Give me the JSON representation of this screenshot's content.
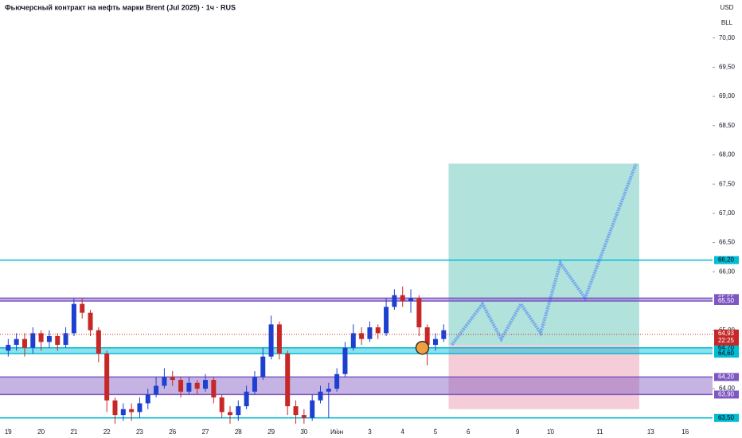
{
  "chart_data": {
    "type": "candlestick",
    "title": "Фьючерсный контракт на нефть марки Brent (Jul 2025) · 1ч · RUS",
    "currency": "USD",
    "unit": "BLL",
    "xlim": [
      -0.25,
      21.43
    ],
    "ylim": [
      63.32,
      70.65
    ],
    "xticks": [
      {
        "value": 0,
        "label": "19"
      },
      {
        "value": 1,
        "label": "20"
      },
      {
        "value": 2,
        "label": "21"
      },
      {
        "value": 3,
        "label": "22"
      },
      {
        "value": 4,
        "label": "23"
      },
      {
        "value": 5,
        "label": "26"
      },
      {
        "value": 6,
        "label": "27"
      },
      {
        "value": 7,
        "label": "28"
      },
      {
        "value": 8,
        "label": "29"
      },
      {
        "value": 9,
        "label": "30"
      },
      {
        "value": 10,
        "label": "Июн"
      },
      {
        "value": 11,
        "label": "3"
      },
      {
        "value": 12,
        "label": "4"
      },
      {
        "value": 13,
        "label": "5"
      },
      {
        "value": 14,
        "label": "6"
      },
      {
        "value": 15.5,
        "label": "9"
      },
      {
        "value": 16.5,
        "label": "10"
      },
      {
        "value": 18,
        "label": "11"
      },
      {
        "value": 19.55,
        "label": "13"
      },
      {
        "value": 20.6,
        "label": "16"
      }
    ],
    "yticks": [
      {
        "value": 70,
        "label": "70,00"
      },
      {
        "value": 69.5,
        "label": "69,50"
      },
      {
        "value": 69,
        "label": "69,00"
      },
      {
        "value": 68.5,
        "label": "68,50"
      },
      {
        "value": 68,
        "label": "68,00"
      },
      {
        "value": 67.5,
        "label": "67,50"
      },
      {
        "value": 67,
        "label": "67,00"
      },
      {
        "value": 66.5,
        "label": "66,50"
      },
      {
        "value": 66,
        "label": "66,00"
      },
      {
        "value": 65,
        "label": "65,00"
      },
      {
        "value": 64,
        "label": "64,00"
      }
    ],
    "up_color": "#1e40d0",
    "down_color": "#c62828",
    "x": [
      0,
      0.25,
      0.5,
      0.75,
      1,
      1.25,
      1.5,
      1.75,
      2,
      2.25,
      2.5,
      2.75,
      3,
      3.25,
      3.5,
      3.75,
      4,
      4.25,
      4.5,
      4.75,
      5,
      5.25,
      5.5,
      5.75,
      6,
      6.25,
      6.5,
      6.75,
      7,
      7.25,
      7.5,
      7.75,
      8,
      8.25,
      8.5,
      8.75,
      9,
      9.25,
      9.5,
      9.75,
      10,
      10.25,
      10.5,
      10.75,
      11,
      11.25,
      11.5,
      11.75,
      12,
      12.25,
      12.5,
      12.75,
      13,
      13.25
    ],
    "open": [
      64.65,
      64.75,
      64.85,
      64.7,
      64.95,
      64.8,
      64.9,
      64.75,
      64.95,
      65.45,
      65.3,
      65.0,
      64.6,
      63.8,
      63.55,
      63.65,
      63.6,
      63.75,
      63.9,
      64.05,
      64.2,
      64.15,
      63.95,
      64.1,
      64.0,
      64.15,
      63.85,
      63.6,
      63.55,
      63.7,
      63.95,
      64.2,
      64.55,
      65.1,
      64.6,
      63.7,
      63.55,
      63.5,
      63.8,
      63.95,
      64.0,
      64.25,
      64.7,
      64.95,
      64.85,
      65.05,
      64.95,
      65.4,
      65.6,
      65.5,
      65.55,
      65.05,
      64.75,
      64.85
    ],
    "high": [
      64.85,
      64.95,
      64.95,
      65.05,
      65.0,
      65.0,
      64.95,
      65.05,
      65.55,
      65.55,
      65.35,
      65.05,
      64.65,
      63.85,
      63.75,
      63.75,
      63.85,
      64.0,
      64.2,
      64.35,
      64.3,
      64.2,
      64.2,
      64.15,
      64.25,
      64.2,
      63.9,
      63.7,
      63.8,
      64.05,
      64.3,
      64.7,
      65.25,
      65.15,
      64.65,
      63.8,
      63.65,
      63.9,
      64.05,
      64.1,
      64.35,
      64.8,
      65.1,
      65.05,
      65.15,
      65.1,
      65.55,
      65.7,
      65.75,
      65.7,
      65.6,
      65.1,
      64.95,
      65.1
    ],
    "low": [
      64.55,
      64.65,
      64.55,
      64.6,
      64.65,
      64.7,
      64.65,
      64.7,
      64.9,
      65.2,
      64.9,
      64.45,
      63.6,
      63.4,
      63.45,
      63.45,
      63.5,
      63.65,
      63.85,
      64.0,
      64.05,
      63.85,
      63.9,
      63.9,
      63.95,
      63.75,
      63.5,
      63.4,
      63.45,
      63.65,
      63.9,
      64.15,
      64.5,
      64.5,
      63.55,
      63.4,
      63.4,
      63.45,
      63.75,
      63.5,
      63.95,
      64.2,
      64.65,
      64.75,
      64.8,
      64.85,
      64.9,
      65.35,
      65.4,
      65.3,
      64.9,
      64.4,
      64.65,
      64.8
    ],
    "close": [
      64.75,
      64.85,
      64.7,
      64.95,
      64.8,
      64.9,
      64.75,
      64.95,
      65.45,
      65.3,
      65.0,
      64.6,
      63.8,
      63.55,
      63.65,
      63.6,
      63.75,
      63.9,
      64.05,
      64.2,
      64.15,
      63.95,
      64.1,
      64.0,
      64.15,
      63.85,
      63.6,
      63.55,
      63.7,
      63.95,
      64.2,
      64.55,
      65.1,
      64.6,
      63.7,
      63.55,
      63.5,
      63.8,
      63.95,
      64.0,
      64.25,
      64.7,
      64.95,
      64.85,
      65.05,
      64.95,
      65.4,
      65.6,
      65.5,
      65.55,
      65.05,
      64.75,
      64.85,
      65.0
    ],
    "forecast": {
      "color": "#2962ff",
      "x": [
        13.5,
        14.43,
        15.0,
        15.6,
        16.2,
        16.8,
        17.55,
        19.1
      ],
      "y": [
        64.75,
        65.45,
        64.85,
        65.45,
        64.95,
        66.15,
        65.55,
        67.85
      ]
    },
    "position": {
      "x0": 13.4,
      "x1": 19.2,
      "entry": 64.75,
      "target": 67.85,
      "stop": 63.65,
      "profit_color": "#7fcfc4",
      "loss_color": "#f0b8c8"
    },
    "levels": [
      {
        "value": 66.2,
        "label": "66,20",
        "color": "#00bcd4"
      },
      {
        "value": 65.55,
        "label": "65,55",
        "color": "#7e57c2"
      },
      {
        "value": 65.5,
        "label": "65,50",
        "color": "#7e57c2"
      },
      {
        "value": 64.7,
        "label": "64,70",
        "color": "#00bcd4"
      },
      {
        "value": 64.6,
        "label": "64,60",
        "color": "#00bcd4"
      },
      {
        "value": 64.2,
        "label": "64,20",
        "color": "#7e57c2"
      },
      {
        "value": 63.9,
        "label": "63,90",
        "color": "#7e57c2"
      },
      {
        "value": 63.5,
        "label": "63,50",
        "color": "#00bcd4"
      }
    ],
    "zones": [
      {
        "low": 65.5,
        "high": 65.55,
        "color": "#7e57c2"
      },
      {
        "low": 64.6,
        "high": 64.7,
        "color": "#00bcd4"
      },
      {
        "low": 63.9,
        "high": 64.2,
        "color": "#7e57c2"
      }
    ],
    "last": {
      "value": 64.93,
      "label": "64,93",
      "timer": "22:25",
      "color": "#c62828"
    },
    "marker": {
      "x": 12.6,
      "y": 64.7,
      "color": "#f0a040"
    }
  }
}
